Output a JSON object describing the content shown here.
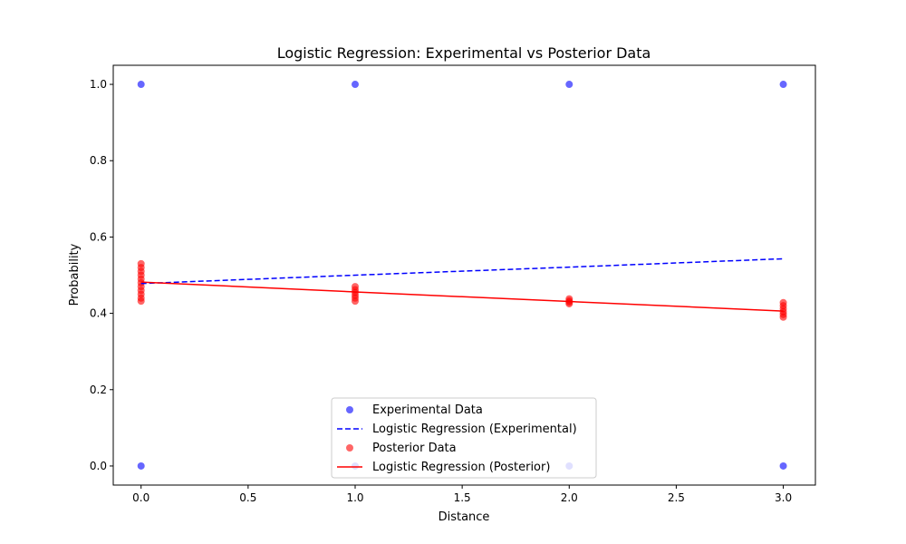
{
  "chart_data": {
    "type": "scatter",
    "title": "Logistic Regression: Experimental vs Posterior Data",
    "xlabel": "Distance",
    "ylabel": "Probability",
    "xlim": [
      -0.13,
      3.15
    ],
    "ylim": [
      -0.05,
      1.05
    ],
    "xticks": [
      "0.0",
      "0.5",
      "1.0",
      "1.5",
      "2.0",
      "2.5",
      "3.0"
    ],
    "yticks": [
      "0.0",
      "0.2",
      "0.4",
      "0.6",
      "0.8",
      "1.0"
    ],
    "legend_position": "lower-center",
    "series": [
      {
        "name": "Experimental Data",
        "kind": "scatter",
        "color": "#0000ff",
        "points": [
          [
            0,
            1.0
          ],
          [
            0,
            0.0
          ],
          [
            1,
            1.0
          ],
          [
            1,
            0.0
          ],
          [
            2,
            1.0
          ],
          [
            2,
            0.0
          ],
          [
            3,
            1.0
          ],
          [
            3,
            0.0
          ]
        ]
      },
      {
        "name": "Logistic Regression (Experimental)",
        "kind": "line",
        "style": "dashed",
        "color": "#0000ff",
        "points": [
          [
            0,
            0.478
          ],
          [
            1,
            0.5
          ],
          [
            2,
            0.521
          ],
          [
            3,
            0.543
          ]
        ]
      },
      {
        "name": "Posterior Data",
        "kind": "scatter",
        "color": "#ff0000",
        "points": [
          [
            0,
            0.53
          ],
          [
            0,
            0.52
          ],
          [
            0,
            0.51
          ],
          [
            0,
            0.5
          ],
          [
            0,
            0.49
          ],
          [
            0,
            0.48
          ],
          [
            0,
            0.47
          ],
          [
            0,
            0.46
          ],
          [
            0,
            0.45
          ],
          [
            0,
            0.44
          ],
          [
            0,
            0.432
          ],
          [
            1,
            0.47
          ],
          [
            1,
            0.462
          ],
          [
            1,
            0.455
          ],
          [
            1,
            0.447
          ],
          [
            1,
            0.44
          ],
          [
            1,
            0.432
          ],
          [
            2,
            0.438
          ],
          [
            2,
            0.433
          ],
          [
            2,
            0.429
          ],
          [
            2,
            0.425
          ],
          [
            3,
            0.428
          ],
          [
            3,
            0.42
          ],
          [
            3,
            0.412
          ],
          [
            3,
            0.404
          ],
          [
            3,
            0.397
          ],
          [
            3,
            0.39
          ]
        ]
      },
      {
        "name": "Logistic Regression (Posterior)",
        "kind": "line",
        "style": "solid",
        "color": "#ff0000",
        "points": [
          [
            0,
            0.482
          ],
          [
            1,
            0.456
          ],
          [
            2,
            0.431
          ],
          [
            3,
            0.406
          ]
        ]
      }
    ]
  }
}
